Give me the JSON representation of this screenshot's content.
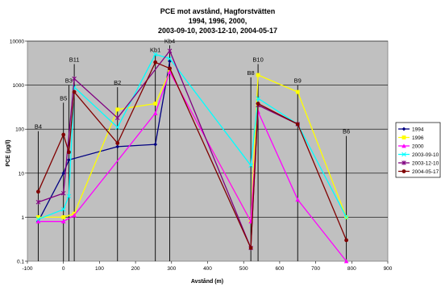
{
  "chart_data": {
    "type": "line",
    "title_lines": [
      "PCE mot avstånd,  Hagforstvätten",
      "1994, 1996, 2000,",
      "2003-09-10, 2003-12-10, 2004-05-17"
    ],
    "xlabel": "Avstånd (m)",
    "ylabel": "PCE (µg/l)",
    "xlim": [
      -100,
      900
    ],
    "ylim": [
      0.1,
      10000
    ],
    "yscale": "log",
    "x_ticks": [
      -100,
      0,
      100,
      200,
      300,
      400,
      500,
      600,
      700,
      800,
      900
    ],
    "y_ticks": [
      0.1,
      1,
      10,
      100,
      1000,
      10000
    ],
    "y_tick_labels": [
      "0.1",
      "1",
      "10",
      "100",
      "1000",
      "10000"
    ],
    "grid": "horizontal",
    "plot_background": "#c0c0c0",
    "legend_position": "right",
    "wells": [
      {
        "name": "B4",
        "x": -70,
        "top": 90
      },
      {
        "name": "B5",
        "x": 0,
        "top": 400
      },
      {
        "name": "B3",
        "x": 15,
        "top": 1000
      },
      {
        "name": "B11",
        "x": 30,
        "top": 3000
      },
      {
        "name": "B2",
        "x": 150,
        "top": 900
      },
      {
        "name": "Kb1",
        "x": 255,
        "top": 5000
      },
      {
        "name": "Kb4",
        "x": 295,
        "top": 8000
      },
      {
        "name": "B8",
        "x": 520,
        "top": 1500
      },
      {
        "name": "B10",
        "x": 540,
        "top": 3000
      },
      {
        "name": "B9",
        "x": 650,
        "top": 1000
      },
      {
        "name": "B6",
        "x": 785,
        "top": 70
      }
    ],
    "series": [
      {
        "name": "1994",
        "color": "#000080",
        "marker": "diamond",
        "points": [
          [
            -70,
            0.8
          ],
          [
            0,
            10
          ],
          [
            15,
            20
          ],
          [
            150,
            40
          ],
          [
            255,
            45
          ],
          [
            295,
            3500
          ]
        ]
      },
      {
        "name": "1996",
        "color": "#ffff00",
        "marker": "square",
        "points": [
          [
            -70,
            1
          ],
          [
            0,
            1
          ],
          [
            30,
            1.2
          ],
          [
            150,
            280
          ],
          [
            255,
            380
          ],
          [
            295,
            2000
          ],
          [
            520,
            0.8
          ],
          [
            540,
            1700
          ],
          [
            650,
            700
          ],
          [
            785,
            1
          ]
        ]
      },
      {
        "name": "2000",
        "color": "#ff00ff",
        "marker": "triangle",
        "points": [
          [
            -70,
            0.8
          ],
          [
            0,
            0.8
          ],
          [
            30,
            1.1
          ],
          [
            255,
            230
          ],
          [
            295,
            2000
          ],
          [
            520,
            0.8
          ],
          [
            540,
            250
          ],
          [
            650,
            2.5
          ],
          [
            785,
            0.1
          ]
        ]
      },
      {
        "name": "2003-09-10",
        "color": "#00ffff",
        "marker": "x",
        "points": [
          [
            -70,
            0.9
          ],
          [
            0,
            1.5
          ],
          [
            15,
            3
          ],
          [
            30,
            900
          ],
          [
            150,
            110
          ],
          [
            255,
            5000
          ],
          [
            295,
            4000
          ],
          [
            520,
            15
          ],
          [
            540,
            500
          ],
          [
            650,
            130
          ],
          [
            785,
            1
          ]
        ]
      },
      {
        "name": "2003-12-10",
        "color": "#800080",
        "marker": "star",
        "points": [
          [
            -70,
            2.2
          ],
          [
            0,
            3.5
          ],
          [
            30,
            1400
          ],
          [
            150,
            180
          ],
          [
            295,
            6000
          ],
          [
            520,
            0.2
          ],
          [
            540,
            350
          ],
          [
            650,
            130
          ]
        ]
      },
      {
        "name": "2004-05-17",
        "color": "#800000",
        "marker": "circle",
        "points": [
          [
            -70,
            3.8
          ],
          [
            0,
            75
          ],
          [
            15,
            30
          ],
          [
            30,
            700
          ],
          [
            150,
            48
          ],
          [
            255,
            3300
          ],
          [
            295,
            2400
          ],
          [
            520,
            0.2
          ],
          [
            540,
            380
          ],
          [
            650,
            130
          ],
          [
            785,
            0.3
          ]
        ]
      }
    ]
  }
}
